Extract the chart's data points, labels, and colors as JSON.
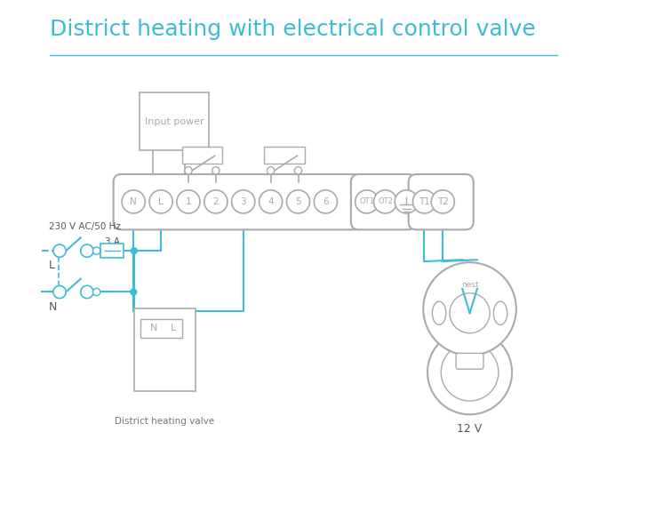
{
  "title": "District heating with electrical control valve",
  "title_color": "#3dbcd4",
  "title_fontsize": 18,
  "bg_color": "#ffffff",
  "line_color": "#3dbcd4",
  "box_color": "#aaaaaa",
  "terminal_labels": [
    "N",
    "L",
    "1",
    "2",
    "3",
    "4",
    "5",
    "6"
  ],
  "ot_labels": [
    "OT1",
    "OT2"
  ],
  "t_labels": [
    "T1",
    "T2"
  ]
}
